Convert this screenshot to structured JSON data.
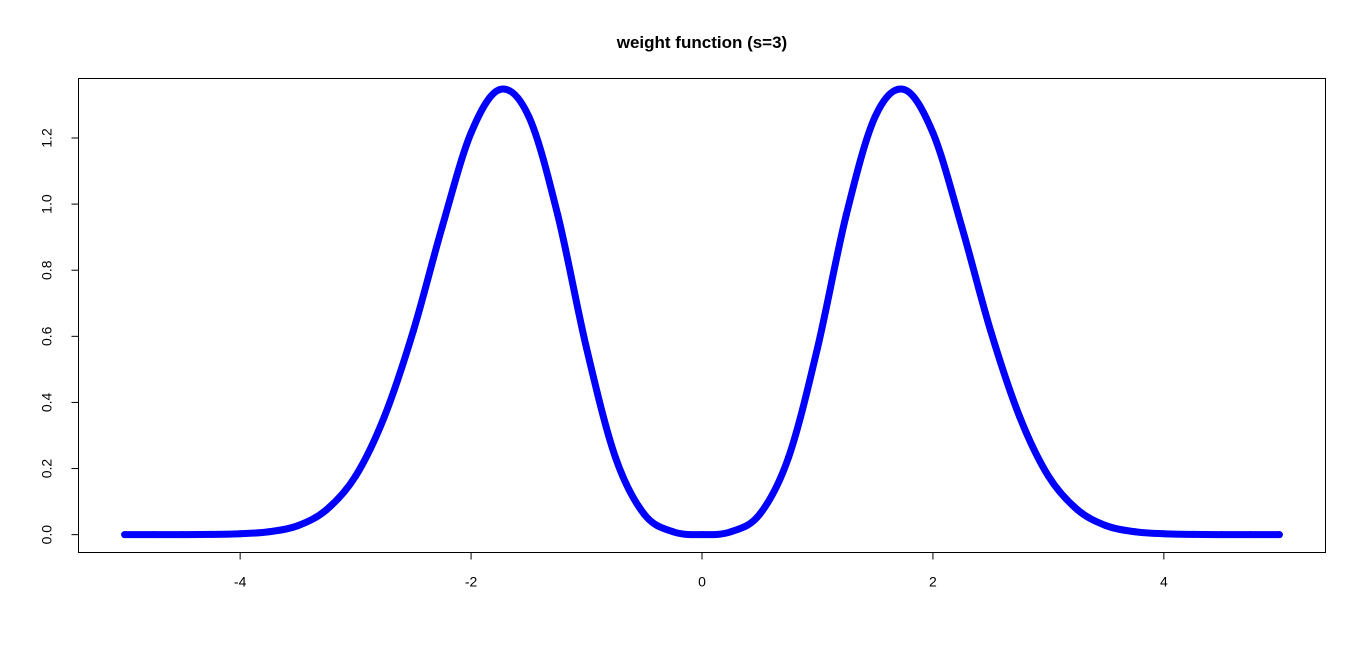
{
  "chart_data": {
    "type": "line",
    "title": "weight function (s=3)",
    "xlabel": "",
    "ylabel": "",
    "xlim": [
      -5.4,
      5.4
    ],
    "ylim": [
      -0.054,
      1.38
    ],
    "x_ticks": [
      -4,
      -2,
      0,
      2,
      4
    ],
    "x_tick_labels": [
      "-4",
      "-2",
      "0",
      "2",
      "4"
    ],
    "y_ticks": [
      0.0,
      0.2,
      0.4,
      0.6,
      0.8,
      1.0,
      1.2
    ],
    "y_tick_labels": [
      "0.0",
      "0.2",
      "0.4",
      "0.6",
      "0.8",
      "1.0",
      "1.2"
    ],
    "grid": false,
    "legend": "none",
    "series_color": "#0000ff",
    "series": [
      {
        "x": [
          -5.0,
          -4.75,
          -4.5,
          -4.25,
          -4.0,
          -3.75,
          -3.5,
          -3.25,
          -3.0,
          -2.75,
          -2.5,
          -2.25,
          -2.0,
          -1.75,
          -1.5,
          -1.25,
          -1.0,
          -0.75,
          -0.5,
          -0.25,
          0.0,
          0.25,
          0.5,
          0.75,
          1.0,
          1.25,
          1.5,
          1.75,
          2.0,
          2.25,
          2.5,
          2.75,
          3.0,
          3.25,
          3.5,
          3.75,
          4.0,
          4.25,
          4.5,
          4.75,
          5.0
        ],
        "values": [
          0.0,
          0.0,
          0.0001,
          0.0007,
          0.0027,
          0.0087,
          0.0271,
          0.0759,
          0.1772,
          0.3577,
          0.6165,
          0.9313,
          1.2154,
          1.3467,
          1.2648,
          0.9681,
          0.5641,
          0.2341,
          0.0617,
          0.0088,
          0.0,
          0.0088,
          0.0617,
          0.2341,
          0.5641,
          0.9681,
          1.2648,
          1.3467,
          1.2154,
          0.9313,
          0.6165,
          0.3577,
          0.1772,
          0.0759,
          0.0271,
          0.0087,
          0.0027,
          0.0007,
          0.0001,
          0.0,
          0.0
        ]
      }
    ]
  }
}
